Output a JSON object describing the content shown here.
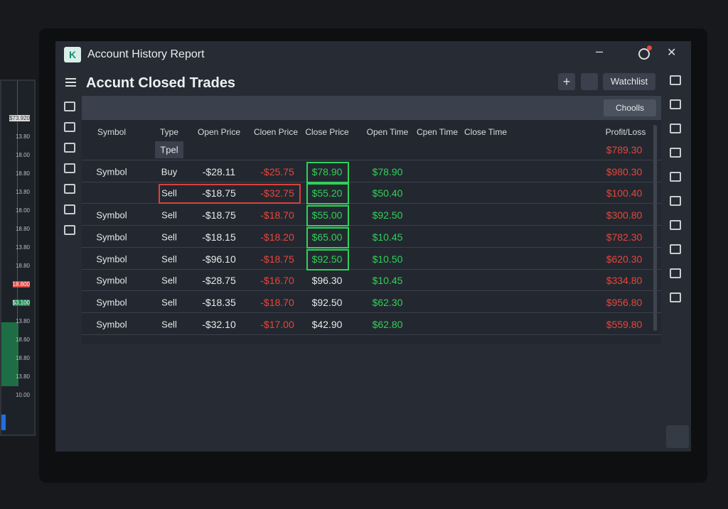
{
  "header": {
    "title": "Account History Report"
  },
  "page": {
    "title": "Accunt Closed Trades",
    "watchlist": "Watchlist",
    "dropdown": "Choolls"
  },
  "side_chart": {
    "labels": [
      "$73.920",
      "13.80",
      "18.00",
      "18.80",
      "13.80",
      "18.00",
      "18.80",
      "13.80",
      "18.80",
      "18.800",
      "$3.100",
      "13.80",
      "18.60",
      "18.80",
      "13.80",
      "10.00"
    ]
  },
  "table": {
    "columns": [
      "Symbol",
      "Type",
      "Open Price",
      "Cloen Price",
      "Close Price",
      "Open Time",
      "Cpen Time",
      "Close Time",
      "Profit/Loss"
    ],
    "rows": [
      {
        "type": "Tpel",
        "pl": "$789.30"
      },
      {
        "symbol": "Symbol",
        "type": "Buy",
        "open": "-$28.11",
        "cloen": "-$25.75",
        "close": "$78.90",
        "open_time": "$78.90",
        "pl": "$980.30",
        "close_box": true
      },
      {
        "type": "Sell",
        "open": "-$18.75",
        "cloen": "-$32.75",
        "close": "$55.20",
        "open_time": "$50.40",
        "pl": "$100.40",
        "close_box": true,
        "row_box": true
      },
      {
        "symbol": "Symbol",
        "type": "Sell",
        "open": "-$18.75",
        "cloen": "-$18.70",
        "close": "$55.00",
        "open_time": "$92.50",
        "pl": "$300.80",
        "close_box": true
      },
      {
        "symbol": "Symbol",
        "type": "Sell",
        "open": "-$18.15",
        "cloen": "-$18.20",
        "close": "$65.00",
        "open_time": "$10.45",
        "pl": "$782.30",
        "close_box": true
      },
      {
        "symbol": "Symbol",
        "type": "Sell",
        "open": "-$96.10",
        "cloen": "-$18.75",
        "close": "$92.50",
        "open_time": "$10.50",
        "pl": "$620.30",
        "close_box": true
      },
      {
        "symbol": "Symbol",
        "type": "Sell",
        "open": "-$28.75",
        "cloen": "-$16.70",
        "close": "$96.30",
        "open_time": "$10.45",
        "pl": "$334.80"
      },
      {
        "symbol": "Symbol",
        "type": "Sell",
        "open": "-$18.35",
        "cloen": "-$18.70",
        "close": "$92.50",
        "open_time": "$62.30",
        "pl": "$956.80"
      },
      {
        "symbol": "Symbol",
        "type": "Sell",
        "open": "-$32.10",
        "cloen": "-$17.00",
        "close": "$42.90",
        "open_time": "$62.80",
        "pl": "$559.80"
      }
    ]
  }
}
